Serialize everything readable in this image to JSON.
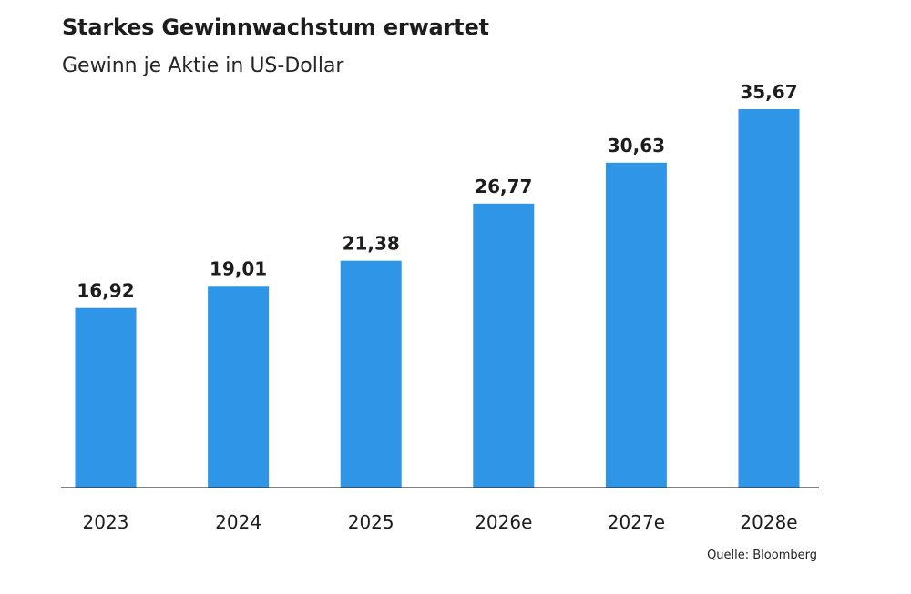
{
  "header": {
    "title": "Starkes Gewinnwachstum erwartet",
    "subtitle": "Gewinn je Aktie in US-Dollar"
  },
  "footer": {
    "source": "Quelle: Bloomberg"
  },
  "colors": {
    "bar": "#2f95e6",
    "axis": "#333333",
    "text": "#1d1d1d"
  },
  "chart_data": {
    "type": "bar",
    "title": "Starkes Gewinnwachstum erwartet",
    "subtitle": "Gewinn je Aktie in US-Dollar",
    "categories": [
      "2023",
      "2024",
      "2025",
      "2026e",
      "2027e",
      "2028e"
    ],
    "values": [
      16.92,
      19.01,
      21.38,
      26.77,
      30.63,
      35.67
    ],
    "value_labels": [
      "16,92",
      "19,01",
      "21,38",
      "26,77",
      "30,63",
      "35,67"
    ],
    "ylim": [
      0,
      35.67
    ],
    "grid": false,
    "legend": "none"
  }
}
